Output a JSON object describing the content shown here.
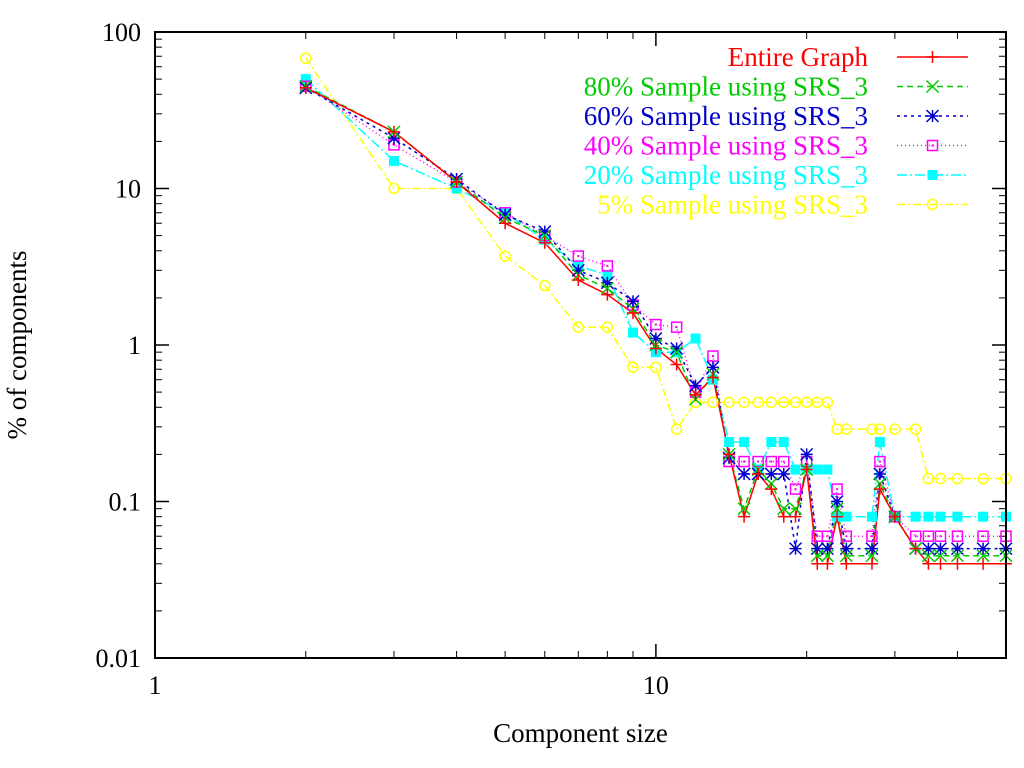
{
  "chart_data": {
    "type": "line",
    "title": "",
    "xlabel": "Component size",
    "ylabel": "% of components",
    "xscale": "log",
    "yscale": "log",
    "xlim": [
      1,
      50
    ],
    "ylim": [
      0.01,
      100
    ],
    "xticks": [
      1,
      10
    ],
    "xtick_labels": [
      "1",
      "10"
    ],
    "yticks": [
      0.01,
      0.1,
      1,
      10,
      100
    ],
    "ytick_labels": [
      "0.01",
      "0.1",
      "1",
      "10",
      "100"
    ],
    "grid": false,
    "legend_position": "top-right",
    "series": [
      {
        "name": "Entire Graph",
        "color": "#ff0000",
        "marker": "plus",
        "dash": "",
        "x": [
          2,
          3,
          4,
          5,
          6,
          7,
          8,
          9,
          10,
          11,
          12,
          13,
          14,
          15,
          16,
          17,
          18,
          19,
          20,
          21,
          22,
          23,
          24,
          27,
          28,
          30,
          33,
          35,
          37,
          40,
          45,
          50
        ],
        "y": [
          44,
          23,
          11,
          6,
          4.5,
          2.6,
          2.1,
          1.6,
          0.95,
          0.75,
          0.48,
          0.62,
          0.2,
          0.08,
          0.15,
          0.12,
          0.08,
          0.08,
          0.16,
          0.04,
          0.04,
          0.08,
          0.04,
          0.04,
          0.12,
          0.08,
          0.05,
          0.04,
          0.04,
          0.04,
          0.04,
          0.04
        ]
      },
      {
        "name": "80% Sample using SRS_3",
        "color": "#00cc00",
        "marker": "x",
        "dash": "6,4",
        "x": [
          2,
          3,
          4,
          5,
          6,
          7,
          8,
          9,
          10,
          11,
          12,
          13,
          14,
          15,
          16,
          17,
          18,
          19,
          20,
          21,
          22,
          23,
          24,
          27,
          28,
          30,
          33,
          35,
          37,
          40,
          45,
          50
        ],
        "y": [
          45,
          23,
          11,
          6.5,
          5,
          2.8,
          2.3,
          1.7,
          1.0,
          0.9,
          0.45,
          0.65,
          0.2,
          0.09,
          0.16,
          0.13,
          0.09,
          0.09,
          0.16,
          0.045,
          0.045,
          0.09,
          0.045,
          0.045,
          0.13,
          0.08,
          0.05,
          0.045,
          0.045,
          0.045,
          0.045,
          0.045
        ]
      },
      {
        "name": "60% Sample using SRS_3",
        "color": "#0000cc",
        "marker": "star",
        "dash": "3,4",
        "x": [
          2,
          3,
          4,
          5,
          6,
          7,
          8,
          9,
          10,
          11,
          12,
          13,
          14,
          15,
          16,
          17,
          18,
          19,
          20,
          21,
          22,
          23,
          24,
          27,
          28,
          30,
          33,
          35,
          37,
          40,
          45,
          50
        ],
        "y": [
          44,
          21,
          11.5,
          6.8,
          5.3,
          3.0,
          2.5,
          1.9,
          1.1,
          0.95,
          0.55,
          0.72,
          0.19,
          0.15,
          0.15,
          0.15,
          0.15,
          0.05,
          0.2,
          0.05,
          0.05,
          0.1,
          0.05,
          0.05,
          0.15,
          0.08,
          0.05,
          0.05,
          0.05,
          0.05,
          0.05,
          0.05
        ]
      },
      {
        "name": "40% Sample using SRS_3",
        "color": "#ff00ff",
        "marker": "square-open",
        "dash": "1,3",
        "x": [
          2,
          3,
          4,
          5,
          6,
          7,
          8,
          9,
          10,
          11,
          12,
          13,
          14,
          15,
          16,
          17,
          18,
          19,
          20,
          21,
          22,
          23,
          24,
          27,
          28,
          30,
          33,
          35,
          37,
          40,
          45,
          50
        ],
        "y": [
          45,
          19,
          11,
          7,
          5,
          3.7,
          3.2,
          1.8,
          1.35,
          1.3,
          0.5,
          0.85,
          0.18,
          0.18,
          0.18,
          0.18,
          0.18,
          0.12,
          0.18,
          0.06,
          0.06,
          0.12,
          0.06,
          0.06,
          0.18,
          0.08,
          0.06,
          0.06,
          0.06,
          0.06,
          0.06,
          0.06
        ]
      },
      {
        "name": "20% Sample using SRS_3",
        "color": "#00ffff",
        "marker": "square-filled",
        "dash": "10,3,2,3",
        "x": [
          2,
          3,
          4,
          5,
          6,
          7,
          8,
          9,
          10,
          11,
          12,
          13,
          14,
          15,
          16,
          17,
          18,
          19,
          20,
          21,
          22,
          23,
          24,
          27,
          28,
          30,
          33,
          35,
          37,
          40,
          45,
          50
        ],
        "y": [
          50,
          15,
          10,
          7,
          4.7,
          3.2,
          2.8,
          1.2,
          0.9,
          0.9,
          1.1,
          0.6,
          0.24,
          0.24,
          0.16,
          0.24,
          0.24,
          0.16,
          0.16,
          0.16,
          0.16,
          0.08,
          0.08,
          0.08,
          0.24,
          0.08,
          0.08,
          0.08,
          0.08,
          0.08,
          0.08,
          0.08
        ]
      },
      {
        "name": "5% Sample using SRS_3",
        "color": "#ffff00",
        "marker": "circle-open",
        "dash": "8,3,2,3",
        "x": [
          2,
          3,
          4,
          5,
          6,
          7,
          8,
          9,
          10,
          11,
          12,
          13,
          14,
          15,
          16,
          17,
          18,
          19,
          20,
          21,
          22,
          23,
          24,
          27,
          28,
          30,
          33,
          35,
          37,
          40,
          45,
          50
        ],
        "y": [
          68,
          10,
          10,
          3.7,
          2.4,
          1.3,
          1.3,
          0.72,
          0.72,
          0.29,
          0.43,
          0.43,
          0.43,
          0.43,
          0.43,
          0.43,
          0.43,
          0.43,
          0.43,
          0.43,
          0.43,
          0.29,
          0.29,
          0.29,
          0.29,
          0.29,
          0.29,
          0.14,
          0.14,
          0.14,
          0.14,
          0.14
        ]
      }
    ]
  }
}
